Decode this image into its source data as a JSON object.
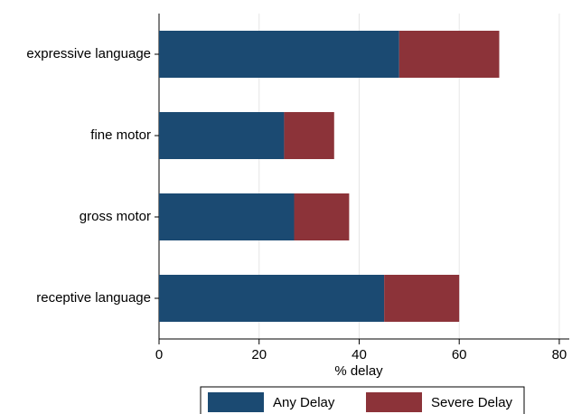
{
  "chart_data": {
    "type": "bar",
    "orientation": "horizontal",
    "stacked": true,
    "categories": [
      "expressive language",
      "fine motor",
      "gross motor",
      "receptive language"
    ],
    "series": [
      {
        "name": "Any Delay",
        "color": "#1b4a72",
        "values": [
          48,
          25,
          27,
          45
        ]
      },
      {
        "name": "Severe Delay",
        "color": "#8c3339",
        "values": [
          20,
          10,
          11,
          15
        ]
      }
    ],
    "xlabel": "% delay",
    "xlim": [
      0,
      82
    ],
    "xticks": [
      0,
      20,
      40,
      60,
      80
    ],
    "grid": true,
    "legend": "bottom"
  }
}
